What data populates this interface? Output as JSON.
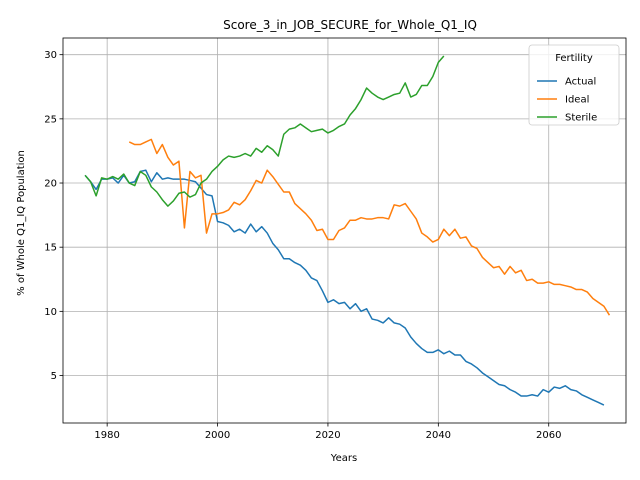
{
  "chart_data": {
    "type": "line",
    "title": "Score_3_in_JOB_SECURE_for_Whole_Q1_IQ",
    "xlabel": "Years",
    "ylabel": "% of Whole Q1_IQ Population",
    "xlim": [
      1972,
      2074
    ],
    "ylim": [
      1.3,
      31.3
    ],
    "xticks": [
      1980,
      2000,
      2020,
      2040,
      2060
    ],
    "yticks": [
      5,
      10,
      15,
      20,
      25,
      30
    ],
    "grid": true,
    "legend": {
      "title": "Fertility",
      "placement": "top-right"
    },
    "series": [
      {
        "name": "Actual",
        "color": "#1f77b4",
        "points": [
          [
            1976,
            20.6
          ],
          [
            1977,
            20.1
          ],
          [
            1978,
            19.5
          ],
          [
            1979,
            20.3
          ],
          [
            1980,
            20.3
          ],
          [
            1981,
            20.4
          ],
          [
            1982,
            20.0
          ],
          [
            1983,
            20.6
          ],
          [
            1984,
            20.0
          ],
          [
            1985,
            20.1
          ],
          [
            1986,
            20.9
          ],
          [
            1987,
            21.0
          ],
          [
            1988,
            20.1
          ],
          [
            1989,
            20.8
          ],
          [
            1990,
            20.3
          ],
          [
            1991,
            20.4
          ],
          [
            1992,
            20.3
          ],
          [
            1993,
            20.3
          ],
          [
            1994,
            20.3
          ],
          [
            1995,
            20.2
          ],
          [
            1996,
            20.1
          ],
          [
            1997,
            19.6
          ],
          [
            1998,
            19.1
          ],
          [
            1999,
            19.0
          ],
          [
            2000,
            17.0
          ],
          [
            2001,
            16.9
          ],
          [
            2002,
            16.7
          ],
          [
            2003,
            16.2
          ],
          [
            2004,
            16.4
          ],
          [
            2005,
            16.1
          ],
          [
            2006,
            16.8
          ],
          [
            2007,
            16.2
          ],
          [
            2008,
            16.6
          ],
          [
            2009,
            16.1
          ],
          [
            2010,
            15.3
          ],
          [
            2011,
            14.8
          ],
          [
            2012,
            14.1
          ],
          [
            2013,
            14.1
          ],
          [
            2014,
            13.8
          ],
          [
            2015,
            13.6
          ],
          [
            2016,
            13.2
          ],
          [
            2017,
            12.6
          ],
          [
            2018,
            12.4
          ],
          [
            2019,
            11.6
          ],
          [
            2020,
            10.7
          ],
          [
            2021,
            10.9
          ],
          [
            2022,
            10.6
          ],
          [
            2023,
            10.7
          ],
          [
            2024,
            10.2
          ],
          [
            2025,
            10.6
          ],
          [
            2026,
            10.0
          ],
          [
            2027,
            10.2
          ],
          [
            2028,
            9.4
          ],
          [
            2029,
            9.3
          ],
          [
            2030,
            9.1
          ],
          [
            2031,
            9.5
          ],
          [
            2032,
            9.1
          ],
          [
            2033,
            9.0
          ],
          [
            2034,
            8.7
          ],
          [
            2035,
            8.0
          ],
          [
            2036,
            7.5
          ],
          [
            2037,
            7.1
          ],
          [
            2038,
            6.8
          ],
          [
            2039,
            6.8
          ],
          [
            2040,
            7.0
          ],
          [
            2041,
            6.7
          ],
          [
            2042,
            6.9
          ],
          [
            2043,
            6.6
          ],
          [
            2044,
            6.6
          ],
          [
            2045,
            6.1
          ],
          [
            2046,
            5.9
          ],
          [
            2047,
            5.6
          ],
          [
            2048,
            5.2
          ],
          [
            2049,
            4.9
          ],
          [
            2050,
            4.6
          ],
          [
            2051,
            4.3
          ],
          [
            2052,
            4.2
          ],
          [
            2053,
            3.9
          ],
          [
            2054,
            3.7
          ],
          [
            2055,
            3.4
          ],
          [
            2056,
            3.4
          ],
          [
            2057,
            3.5
          ],
          [
            2058,
            3.4
          ],
          [
            2059,
            3.9
          ],
          [
            2060,
            3.7
          ],
          [
            2061,
            4.1
          ],
          [
            2062,
            4.0
          ],
          [
            2063,
            4.2
          ],
          [
            2064,
            3.9
          ],
          [
            2065,
            3.8
          ],
          [
            2066,
            3.5
          ],
          [
            2067,
            3.3
          ],
          [
            2068,
            3.1
          ],
          [
            2069,
            2.9
          ],
          [
            2070,
            2.7
          ]
        ]
      },
      {
        "name": "Ideal",
        "color": "#ff7f0e",
        "points": [
          [
            1984,
            23.2
          ],
          [
            1985,
            23.0
          ],
          [
            1986,
            23.0
          ],
          [
            1987,
            23.2
          ],
          [
            1988,
            23.4
          ],
          [
            1989,
            22.3
          ],
          [
            1990,
            23.0
          ],
          [
            1991,
            22.0
          ],
          [
            1992,
            21.4
          ],
          [
            1993,
            21.7
          ],
          [
            1994,
            16.5
          ],
          [
            1995,
            20.9
          ],
          [
            1996,
            20.4
          ],
          [
            1997,
            20.6
          ],
          [
            1998,
            16.1
          ],
          [
            1999,
            17.6
          ],
          [
            2000,
            17.6
          ],
          [
            2001,
            17.7
          ],
          [
            2002,
            17.9
          ],
          [
            2003,
            18.5
          ],
          [
            2004,
            18.3
          ],
          [
            2005,
            18.7
          ],
          [
            2006,
            19.4
          ],
          [
            2007,
            20.2
          ],
          [
            2008,
            20.0
          ],
          [
            2009,
            21.0
          ],
          [
            2010,
            20.5
          ],
          [
            2011,
            19.9
          ],
          [
            2012,
            19.3
          ],
          [
            2013,
            19.3
          ],
          [
            2014,
            18.4
          ],
          [
            2015,
            18.0
          ],
          [
            2016,
            17.6
          ],
          [
            2017,
            17.1
          ],
          [
            2018,
            16.3
          ],
          [
            2019,
            16.4
          ],
          [
            2020,
            15.6
          ],
          [
            2021,
            15.6
          ],
          [
            2022,
            16.3
          ],
          [
            2023,
            16.5
          ],
          [
            2024,
            17.1
          ],
          [
            2025,
            17.1
          ],
          [
            2026,
            17.3
          ],
          [
            2027,
            17.2
          ],
          [
            2028,
            17.2
          ],
          [
            2029,
            17.3
          ],
          [
            2030,
            17.3
          ],
          [
            2031,
            17.2
          ],
          [
            2032,
            18.3
          ],
          [
            2033,
            18.2
          ],
          [
            2034,
            18.4
          ],
          [
            2035,
            17.8
          ],
          [
            2036,
            17.2
          ],
          [
            2037,
            16.1
          ],
          [
            2038,
            15.8
          ],
          [
            2039,
            15.4
          ],
          [
            2040,
            15.6
          ],
          [
            2041,
            16.4
          ],
          [
            2042,
            15.9
          ],
          [
            2043,
            16.4
          ],
          [
            2044,
            15.7
          ],
          [
            2045,
            15.8
          ],
          [
            2046,
            15.1
          ],
          [
            2047,
            14.9
          ],
          [
            2048,
            14.2
          ],
          [
            2049,
            13.8
          ],
          [
            2050,
            13.4
          ],
          [
            2051,
            13.5
          ],
          [
            2052,
            12.9
          ],
          [
            2053,
            13.5
          ],
          [
            2054,
            13.0
          ],
          [
            2055,
            13.2
          ],
          [
            2056,
            12.4
          ],
          [
            2057,
            12.5
          ],
          [
            2058,
            12.2
          ],
          [
            2059,
            12.2
          ],
          [
            2060,
            12.3
          ],
          [
            2061,
            12.1
          ],
          [
            2062,
            12.1
          ],
          [
            2063,
            12.0
          ],
          [
            2064,
            11.9
          ],
          [
            2065,
            11.7
          ],
          [
            2066,
            11.7
          ],
          [
            2067,
            11.5
          ],
          [
            2068,
            11.0
          ],
          [
            2069,
            10.7
          ],
          [
            2070,
            10.4
          ],
          [
            2071,
            9.7
          ]
        ]
      },
      {
        "name": "Sterile",
        "color": "#2ca02c",
        "points": [
          [
            1976,
            20.6
          ],
          [
            1977,
            20.1
          ],
          [
            1978,
            19.0
          ],
          [
            1979,
            20.4
          ],
          [
            1980,
            20.3
          ],
          [
            1981,
            20.5
          ],
          [
            1982,
            20.3
          ],
          [
            1983,
            20.7
          ],
          [
            1984,
            20.0
          ],
          [
            1985,
            19.8
          ],
          [
            1986,
            20.9
          ],
          [
            1987,
            20.6
          ],
          [
            1988,
            19.7
          ],
          [
            1989,
            19.3
          ],
          [
            1990,
            18.7
          ],
          [
            1991,
            18.2
          ],
          [
            1992,
            18.6
          ],
          [
            1993,
            19.2
          ],
          [
            1994,
            19.3
          ],
          [
            1995,
            18.9
          ],
          [
            1996,
            19.1
          ],
          [
            1997,
            20.0
          ],
          [
            1998,
            20.3
          ],
          [
            1999,
            20.9
          ],
          [
            2000,
            21.3
          ],
          [
            2001,
            21.8
          ],
          [
            2002,
            22.1
          ],
          [
            2003,
            22.0
          ],
          [
            2004,
            22.1
          ],
          [
            2005,
            22.3
          ],
          [
            2006,
            22.1
          ],
          [
            2007,
            22.7
          ],
          [
            2008,
            22.4
          ],
          [
            2009,
            22.9
          ],
          [
            2010,
            22.6
          ],
          [
            2011,
            22.1
          ],
          [
            2012,
            23.8
          ],
          [
            2013,
            24.2
          ],
          [
            2014,
            24.3
          ],
          [
            2015,
            24.6
          ],
          [
            2016,
            24.3
          ],
          [
            2017,
            24.0
          ],
          [
            2018,
            24.1
          ],
          [
            2019,
            24.2
          ],
          [
            2020,
            23.9
          ],
          [
            2021,
            24.1
          ],
          [
            2022,
            24.4
          ],
          [
            2023,
            24.6
          ],
          [
            2024,
            25.3
          ],
          [
            2025,
            25.8
          ],
          [
            2026,
            26.5
          ],
          [
            2027,
            27.4
          ],
          [
            2028,
            27.0
          ],
          [
            2029,
            26.7
          ],
          [
            2030,
            26.5
          ],
          [
            2031,
            26.7
          ],
          [
            2032,
            26.9
          ],
          [
            2033,
            27.0
          ],
          [
            2034,
            27.8
          ],
          [
            2035,
            26.7
          ],
          [
            2036,
            26.9
          ],
          [
            2037,
            27.6
          ],
          [
            2038,
            27.6
          ],
          [
            2039,
            28.3
          ],
          [
            2040,
            29.4
          ],
          [
            2041,
            29.9
          ]
        ]
      }
    ]
  }
}
